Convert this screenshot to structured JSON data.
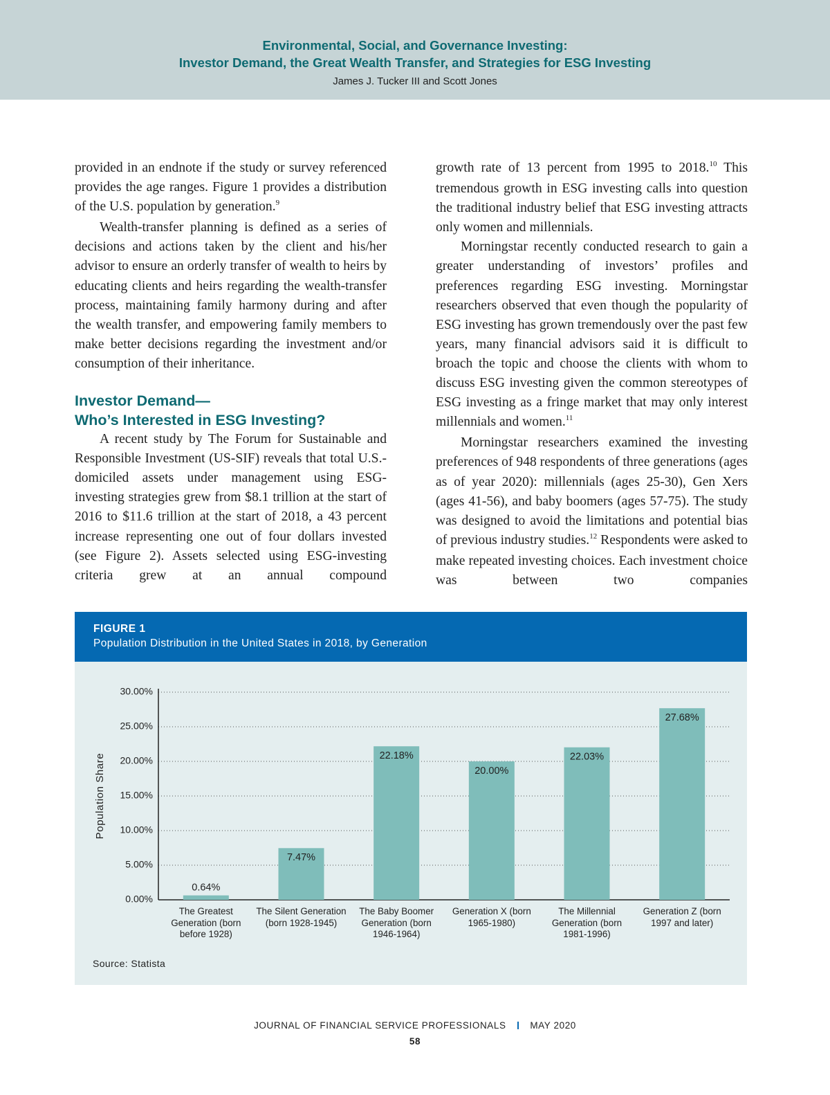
{
  "header": {
    "title_lines": [
      "Environmental, Social, and Governance Investing:",
      "Investor Demand, the Great Wealth Transfer, and Strategies for ESG Investing"
    ],
    "authors": "James J. Tucker III and Scott Jones"
  },
  "columns": [
    [
      {
        "parts": [
          {
            "text": "provided in an endnote if the study or survey referenced provides the age ranges. Figure 1 provides a distribution of the U.S. population by generation."
          },
          {
            "sup": "9"
          }
        ]
      },
      {
        "parts": [
          {
            "text": "Wealth-transfer planning is defined as a series of decisions and actions taken by the client and his/her advisor to ensure an orderly transfer of wealth to heirs by educating clients and heirs regarding the wealth-transfer process, maintaining family harmony during and after the wealth transfer, and empowering family members to make better decisions regarding the investment and/or consumption of their inheritance."
          }
        ]
      },
      {
        "heading": [
          "Investor Demand—",
          "Who’s Interested in ESG Investing?"
        ]
      },
      {
        "parts": [
          {
            "text": "A recent study by The Forum for Sustainable and Responsible Investment (US-SIF) reveals that total U.S.-domiciled assets under management using ESG-investing strategies grew from $8.1 trillion at the start of 2016 to $11.6 trillion at the start of 2018, a 43 percent increase representing one out of four dollars invested (see Figure 2). Assets selected using ESG-investing criteria grew at an annual compound"
          }
        ]
      }
    ],
    [
      {
        "parts": [
          {
            "text": "growth rate of 13 percent from 1995 to 2018."
          },
          {
            "sup": "10"
          },
          {
            "text": " This tremendous growth in ESG investing calls into question the traditional industry belief that ESG investing attracts only women and millennials."
          }
        ]
      },
      {
        "parts": [
          {
            "text": "Morningstar recently conducted research to gain a greater understanding of investors’ profiles and preferences regarding ESG investing. Morningstar researchers observed that even though the popularity of ESG investing has grown tremendously over the past few years, many financial advisors said it is difficult to broach the topic and choose the clients with whom to discuss ESG investing given the common stereotypes of ESG investing as a fringe market that may only interest millennials and women."
          },
          {
            "sup": "11"
          }
        ]
      },
      {
        "parts": [
          {
            "text": "Morningstar researchers examined the investing preferences of 948 respondents of three generations (ages as of year 2020): millennials (ages 25-30), Gen Xers (ages 41-56), and baby boomers (ages 57-75). The study was designed to avoid the limitations and potential bias of previous industry studies."
          },
          {
            "sup": "12"
          },
          {
            "text": " Respondents were asked to make repeated investing choices. Each investment choice was between two companies"
          }
        ]
      }
    ]
  ],
  "figure": {
    "label": "FIGURE 1",
    "caption": "Population Distribution in the United States in 2018, by Generation",
    "source": "Source: Statista"
  },
  "chart_data": {
    "type": "bar",
    "ylabel": "Population Share",
    "categories": [
      "The Greatest Generation (born before 1928)",
      "The Silent Generation (born 1928-1945)",
      "The Baby Boomer Generation (born 1946-1964)",
      "Generation X (born 1965-1980)",
      "The Millennial Generation (born 1981-1996)",
      "Generation Z (born 1997 and later)"
    ],
    "values": [
      0.64,
      7.47,
      22.18,
      20.0,
      22.03,
      27.68
    ],
    "value_labels": [
      "0.64%",
      "7.47%",
      "22.18%",
      "20.00%",
      "22.03%",
      "27.68%"
    ],
    "color": "#7fbdba",
    "ylim": [
      0,
      30
    ],
    "yticks": [
      {
        "value": 0,
        "label": "0.00%"
      },
      {
        "value": 5,
        "label": "5.00%"
      },
      {
        "value": 10,
        "label": "10.00%"
      },
      {
        "value": 15,
        "label": "15.00%"
      },
      {
        "value": 20,
        "label": "20.00%"
      },
      {
        "value": 25,
        "label": "25.00%"
      },
      {
        "value": 30,
        "label": "30.00%"
      }
    ],
    "grid": true
  },
  "footer": {
    "journal": "JOURNAL OF FINANCIAL SERVICE PROFESSIONALS",
    "date": "MAY 2020",
    "page": "58"
  }
}
